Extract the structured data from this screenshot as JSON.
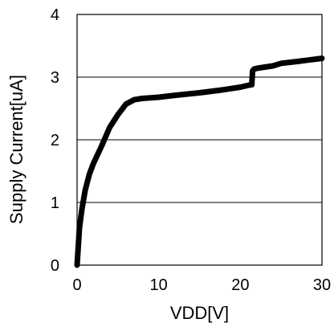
{
  "chart_data": {
    "type": "line",
    "title": "",
    "xlabel": "VDD[V]",
    "ylabel": "Supply Current[uA]",
    "xlim": [
      0,
      30
    ],
    "ylim": [
      0,
      4
    ],
    "x_ticks": [
      0,
      10,
      20,
      30
    ],
    "y_ticks": [
      0,
      1,
      2,
      3,
      4
    ],
    "x_tick_labels": [
      "0",
      "10",
      "20",
      "30"
    ],
    "y_tick_labels": [
      "0",
      "1",
      "2",
      "3",
      "4"
    ],
    "grid": "horizontal",
    "legend": "none",
    "line_color": "#000000",
    "series": [
      {
        "x": [
          0,
          0.3,
          0.6,
          1,
          1.5,
          2,
          3,
          4,
          5,
          6,
          7,
          8,
          10,
          12,
          15,
          18,
          20,
          21,
          21.4,
          21.5,
          21.7,
          22,
          23,
          24,
          25,
          27,
          30
        ],
        "y": [
          0,
          0.6,
          0.9,
          1.2,
          1.45,
          1.62,
          1.9,
          2.2,
          2.4,
          2.57,
          2.64,
          2.66,
          2.68,
          2.71,
          2.75,
          2.8,
          2.84,
          2.87,
          2.88,
          3.1,
          3.13,
          3.14,
          3.16,
          3.18,
          3.22,
          3.25,
          3.3
        ]
      }
    ]
  }
}
